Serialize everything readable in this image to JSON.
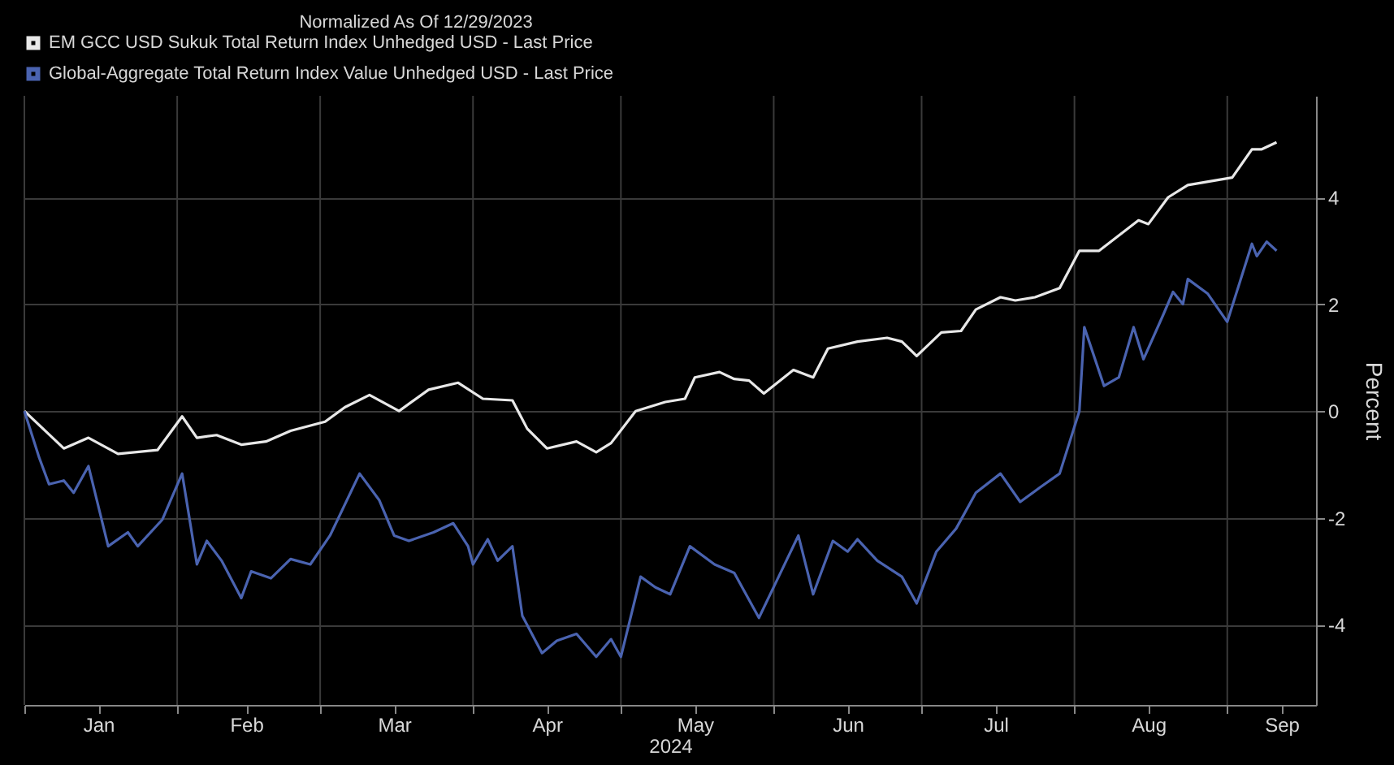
{
  "chart_data": {
    "type": "line",
    "title": "Normalized As Of 12/29/2023",
    "xlabel": "2024",
    "ylabel": "Percent",
    "xlim": [
      "2024-01-01",
      "2024-09-19"
    ],
    "ylim": [
      -5.5,
      5.9
    ],
    "xticks": [
      {
        "value": "2024-01-01",
        "label": null
      },
      {
        "value": "2024-01-16",
        "label": "Jan"
      },
      {
        "value": "2024-02-01",
        "label": null
      },
      {
        "value": "2024-02-15",
        "label": "Feb"
      },
      {
        "value": "2024-03-01",
        "label": null
      },
      {
        "value": "2024-03-16",
        "label": "Mar"
      },
      {
        "value": "2024-04-01",
        "label": null
      },
      {
        "value": "2024-04-16",
        "label": "Apr"
      },
      {
        "value": "2024-05-01",
        "label": null
      },
      {
        "value": "2024-05-16",
        "label": "May"
      },
      {
        "value": "2024-06-01",
        "label": null
      },
      {
        "value": "2024-06-16",
        "label": "Jun"
      },
      {
        "value": "2024-07-01",
        "label": null
      },
      {
        "value": "2024-07-16",
        "label": "Jul"
      },
      {
        "value": "2024-08-01",
        "label": null
      },
      {
        "value": "2024-08-16",
        "label": "Aug"
      },
      {
        "value": "2024-09-01",
        "label": null
      },
      {
        "value": "2024-09-12",
        "label": "Sep"
      }
    ],
    "yticks": [
      -4,
      -2,
      0,
      2,
      4
    ],
    "grid": true,
    "legend": "top left",
    "line_style": "solid",
    "series": [
      {
        "name": "EM GCC USD Sukuk Total Return Index Unhedged USD - Last Price",
        "color": "#e8e8e8",
        "x": [
          "2024-01-01",
          "2024-01-09",
          "2024-01-14",
          "2024-01-20",
          "2024-01-28",
          "2024-02-02",
          "2024-02-05",
          "2024-02-09",
          "2024-02-14",
          "2024-02-19",
          "2024-02-24",
          "2024-03-02",
          "2024-03-06",
          "2024-03-11",
          "2024-03-17",
          "2024-03-23",
          "2024-03-29",
          "2024-04-03",
          "2024-04-09",
          "2024-04-12",
          "2024-04-16",
          "2024-04-22",
          "2024-04-26",
          "2024-04-29",
          "2024-05-04",
          "2024-05-10",
          "2024-05-14",
          "2024-05-16",
          "2024-05-21",
          "2024-05-24",
          "2024-05-27",
          "2024-05-30",
          "2024-06-05",
          "2024-06-09",
          "2024-06-12",
          "2024-06-18",
          "2024-06-24",
          "2024-06-27",
          "2024-06-30",
          "2024-07-05",
          "2024-07-09",
          "2024-07-12",
          "2024-07-17",
          "2024-07-20",
          "2024-07-24",
          "2024-07-29",
          "2024-08-02",
          "2024-08-06",
          "2024-08-14",
          "2024-08-16",
          "2024-08-20",
          "2024-08-24",
          "2024-09-02",
          "2024-09-06",
          "2024-09-08",
          "2024-09-11"
        ],
        "values": [
          0.0,
          -0.7,
          -0.5,
          -0.8,
          -0.73,
          -0.1,
          -0.5,
          -0.45,
          -0.63,
          -0.57,
          -0.37,
          -0.2,
          0.07,
          0.3,
          0.0,
          0.4,
          0.53,
          0.23,
          0.2,
          -0.33,
          -0.7,
          -0.57,
          -0.77,
          -0.6,
          0.0,
          0.17,
          0.23,
          0.63,
          0.73,
          0.6,
          0.57,
          0.33,
          0.77,
          0.63,
          1.17,
          1.3,
          1.37,
          1.3,
          1.03,
          1.47,
          1.5,
          1.9,
          2.13,
          2.07,
          2.13,
          2.3,
          3.0,
          3.0,
          3.57,
          3.5,
          4.0,
          4.23,
          4.37,
          4.9,
          4.9,
          5.03
        ]
      },
      {
        "name": "Global-Aggregate Total Return Index Value Unhedged USD - Last Price",
        "color": "#4a63b0",
        "x": [
          "2024-01-01",
          "2024-01-04",
          "2024-01-06",
          "2024-01-09",
          "2024-01-11",
          "2024-01-14",
          "2024-01-18",
          "2024-01-22",
          "2024-01-24",
          "2024-01-29",
          "2024-02-02",
          "2024-02-05",
          "2024-02-07",
          "2024-02-10",
          "2024-02-14",
          "2024-02-16",
          "2024-02-20",
          "2024-02-24",
          "2024-02-28",
          "2024-03-03",
          "2024-03-09",
          "2024-03-13",
          "2024-03-16",
          "2024-03-19",
          "2024-03-24",
          "2024-03-28",
          "2024-03-31",
          "2024-04-01",
          "2024-04-04",
          "2024-04-06",
          "2024-04-09",
          "2024-04-11",
          "2024-04-15",
          "2024-04-18",
          "2024-04-22",
          "2024-04-26",
          "2024-04-29",
          "2024-05-01",
          "2024-05-05",
          "2024-05-08",
          "2024-05-11",
          "2024-05-15",
          "2024-05-20",
          "2024-05-24",
          "2024-05-29",
          "2024-06-02",
          "2024-06-06",
          "2024-06-09",
          "2024-06-13",
          "2024-06-16",
          "2024-06-18",
          "2024-06-22",
          "2024-06-27",
          "2024-06-30",
          "2024-07-04",
          "2024-07-08",
          "2024-07-12",
          "2024-07-17",
          "2024-07-21",
          "2024-07-25",
          "2024-07-29",
          "2024-08-02",
          "2024-08-03",
          "2024-08-07",
          "2024-08-10",
          "2024-08-13",
          "2024-08-15",
          "2024-08-19",
          "2024-08-21",
          "2024-08-23",
          "2024-08-24",
          "2024-08-28",
          "2024-09-01",
          "2024-09-06",
          "2024-09-07",
          "2024-09-09",
          "2024-09-11"
        ],
        "values": [
          0.0,
          -0.87,
          -1.37,
          -1.3,
          -1.53,
          -1.03,
          -2.53,
          -2.27,
          -2.53,
          -2.03,
          -1.17,
          -2.87,
          -2.43,
          -2.8,
          -3.5,
          -3.0,
          -3.13,
          -2.77,
          -2.87,
          -2.33,
          -1.17,
          -1.67,
          -2.33,
          -2.43,
          -2.27,
          -2.1,
          -2.53,
          -2.87,
          -2.4,
          -2.8,
          -2.53,
          -3.83,
          -4.53,
          -4.3,
          -4.17,
          -4.6,
          -4.27,
          -4.6,
          -3.1,
          -3.3,
          -3.43,
          -2.53,
          -2.87,
          -3.03,
          -3.87,
          -3.1,
          -2.33,
          -3.43,
          -2.43,
          -2.63,
          -2.4,
          -2.8,
          -3.1,
          -3.6,
          -2.63,
          -2.2,
          -1.53,
          -1.17,
          -1.7,
          -1.43,
          -1.17,
          0.0,
          1.57,
          0.47,
          0.63,
          1.57,
          0.97,
          1.8,
          2.23,
          2.0,
          2.47,
          2.2,
          1.67,
          3.13,
          2.9,
          3.17,
          3.0
        ]
      }
    ]
  }
}
